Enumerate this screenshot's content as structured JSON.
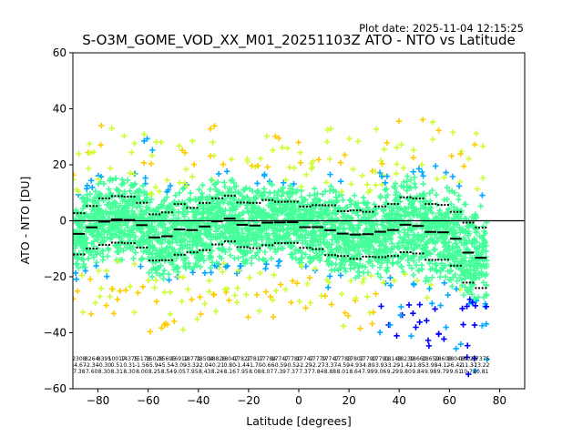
{
  "chart_data": {
    "type": "scatter",
    "plot_date_text": "Plot date: 2025-11-04 12:15:25",
    "title": "S-O3M_GOME_VOD_XX_M01_20251103Z ATO - NTO vs Latitude",
    "xlabel": "Latitude [degrees]",
    "ylabel": "ATO - NTO [DU]",
    "xlim": [
      -90,
      90
    ],
    "ylim": [
      -60,
      60
    ],
    "xticks": [
      -80,
      -60,
      -40,
      -20,
      0,
      20,
      40,
      60,
      80
    ],
    "yticks": [
      -60,
      -40,
      -20,
      0,
      20,
      40,
      60
    ],
    "xtick_labels": [
      "−80",
      "−60",
      "−40",
      "−20",
      "0",
      "20",
      "40",
      "60",
      "80"
    ],
    "ytick_labels": [
      "−60",
      "−40",
      "−20",
      "0",
      "20",
      "40",
      "60"
    ],
    "zero_line": 0,
    "marker": "+",
    "colors": {
      "density_low": "#0000ff",
      "density_midlow": "#00aaff",
      "density_mid": "#44ff99",
      "density_midhigh": "#ccff33",
      "density_high": "#ffcc00",
      "mean_line": "#000000",
      "std_dots": "#000000"
    },
    "bins": [
      {
        "lat": -87.5,
        "mean": -4.67,
        "std": 7.38,
        "count": "2308"
      },
      {
        "lat": -82.5,
        "mean": -2.34,
        "std": 7.6,
        "count": "8264"
      },
      {
        "lat": -77.5,
        "mean": -0.3,
        "std": 8.3,
        "count": "8395"
      },
      {
        "lat": -72.5,
        "mean": 0.51,
        "std": 8.31,
        "count": "10017"
      },
      {
        "lat": -67.5,
        "mean": 0.31,
        "std": 8.3,
        "count": "14375"
      },
      {
        "lat": -62.5,
        "mean": -1.56,
        "std": 8.0,
        "count": "15178"
      },
      {
        "lat": -57.5,
        "mean": -5.94,
        "std": 8.25,
        "count": "15028"
      },
      {
        "lat": -52.5,
        "mean": -5.54,
        "std": 8.54,
        "count": "15695"
      },
      {
        "lat": -47.5,
        "mean": -3.09,
        "std": 9.05,
        "count": "16912"
      },
      {
        "lat": -42.5,
        "mean": -3.32,
        "std": 7.95,
        "count": "18771"
      },
      {
        "lat": -37.5,
        "mean": -2.04,
        "std": 8.43,
        "count": "18504"
      },
      {
        "lat": -32.5,
        "mean": -0.21,
        "std": 8.24,
        "count": "18826"
      },
      {
        "lat": -27.5,
        "mean": 0.8,
        "std": 8.16,
        "count": "18047"
      },
      {
        "lat": -22.5,
        "mean": -1.44,
        "std": 7.95,
        "count": "17827"
      },
      {
        "lat": -17.5,
        "mean": -1.7,
        "std": 8.08,
        "count": "17817"
      },
      {
        "lat": -12.5,
        "mean": -0.66,
        "std": 8.07,
        "count": "17784"
      },
      {
        "lat": -7.5,
        "mean": -0.59,
        "std": 7.39,
        "count": "17747"
      },
      {
        "lat": -2.5,
        "mean": -0.52,
        "std": 7.37,
        "count": "17780"
      },
      {
        "lat": 2.5,
        "mean": -2.29,
        "std": 7.37,
        "count": "17747"
      },
      {
        "lat": 7.5,
        "mean": -2.27,
        "std": 7.84,
        "count": "17779"
      },
      {
        "lat": 12.5,
        "mean": -3.37,
        "std": 8.88,
        "count": "17747"
      },
      {
        "lat": 17.5,
        "mean": -4.59,
        "std": 8.01,
        "count": "17783"
      },
      {
        "lat": 22.5,
        "mean": -4.93,
        "std": 8.64,
        "count": "17807"
      },
      {
        "lat": 27.5,
        "mean": -4.8,
        "std": 7.99,
        "count": "17790"
      },
      {
        "lat": 32.5,
        "mean": -3.93,
        "std": 9.06,
        "count": "17791"
      },
      {
        "lat": 37.5,
        "mean": -3.29,
        "std": 9.29,
        "count": "18148"
      },
      {
        "lat": 42.5,
        "mean": -1.42,
        "std": 9.8,
        "count": "18239"
      },
      {
        "lat": 47.5,
        "mean": -1.85,
        "std": 9.84,
        "count": "18660"
      },
      {
        "lat": 52.5,
        "mean": -3.98,
        "std": 9.98,
        "count": "18659"
      },
      {
        "lat": 57.5,
        "mean": -4.12,
        "std": 9.79,
        "count": "18608"
      },
      {
        "lat": 62.5,
        "mean": -6.42,
        "std": 9.61,
        "count": "18046"
      },
      {
        "lat": 67.5,
        "mean": -11.37,
        "std": 10.72,
        "count": "18023"
      },
      {
        "lat": 72.5,
        "mean": -13.22,
        "std": 10.81,
        "count": "17375"
      }
    ]
  }
}
